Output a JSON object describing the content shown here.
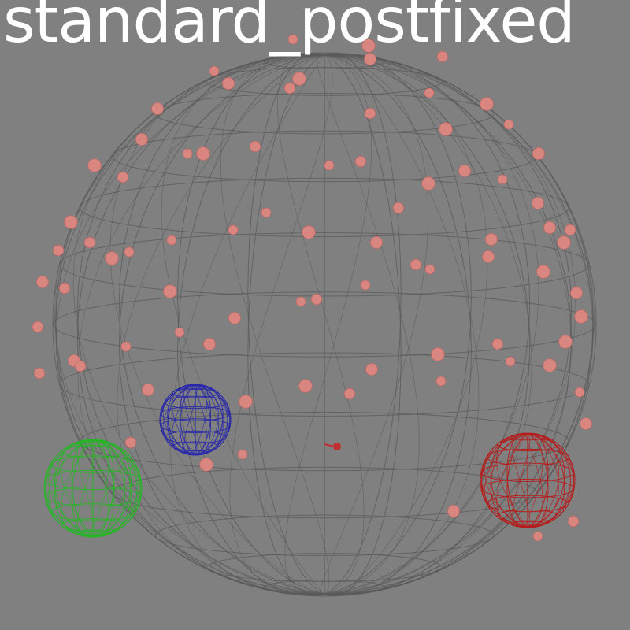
{
  "scene": {
    "title": "standard_postfixed",
    "background_color": "#808080"
  },
  "colors": {
    "boundary_mesh": "#5a5a5a",
    "particle": "#d98580",
    "particle_edge": "#b86a66",
    "green_sphere": "#28b428",
    "blue_sphere": "#2a2aa8",
    "red_sphere": "#b41e1e",
    "pointer": "#c03030"
  },
  "objects": {
    "boundary_sphere": "wireframe-boundary-sphere",
    "green_sphere": "green-wireframe-sphere",
    "blue_sphere": "blue-wireframe-sphere",
    "red_sphere": "red-wireframe-sphere",
    "pointer": "red-arrow-marker"
  }
}
